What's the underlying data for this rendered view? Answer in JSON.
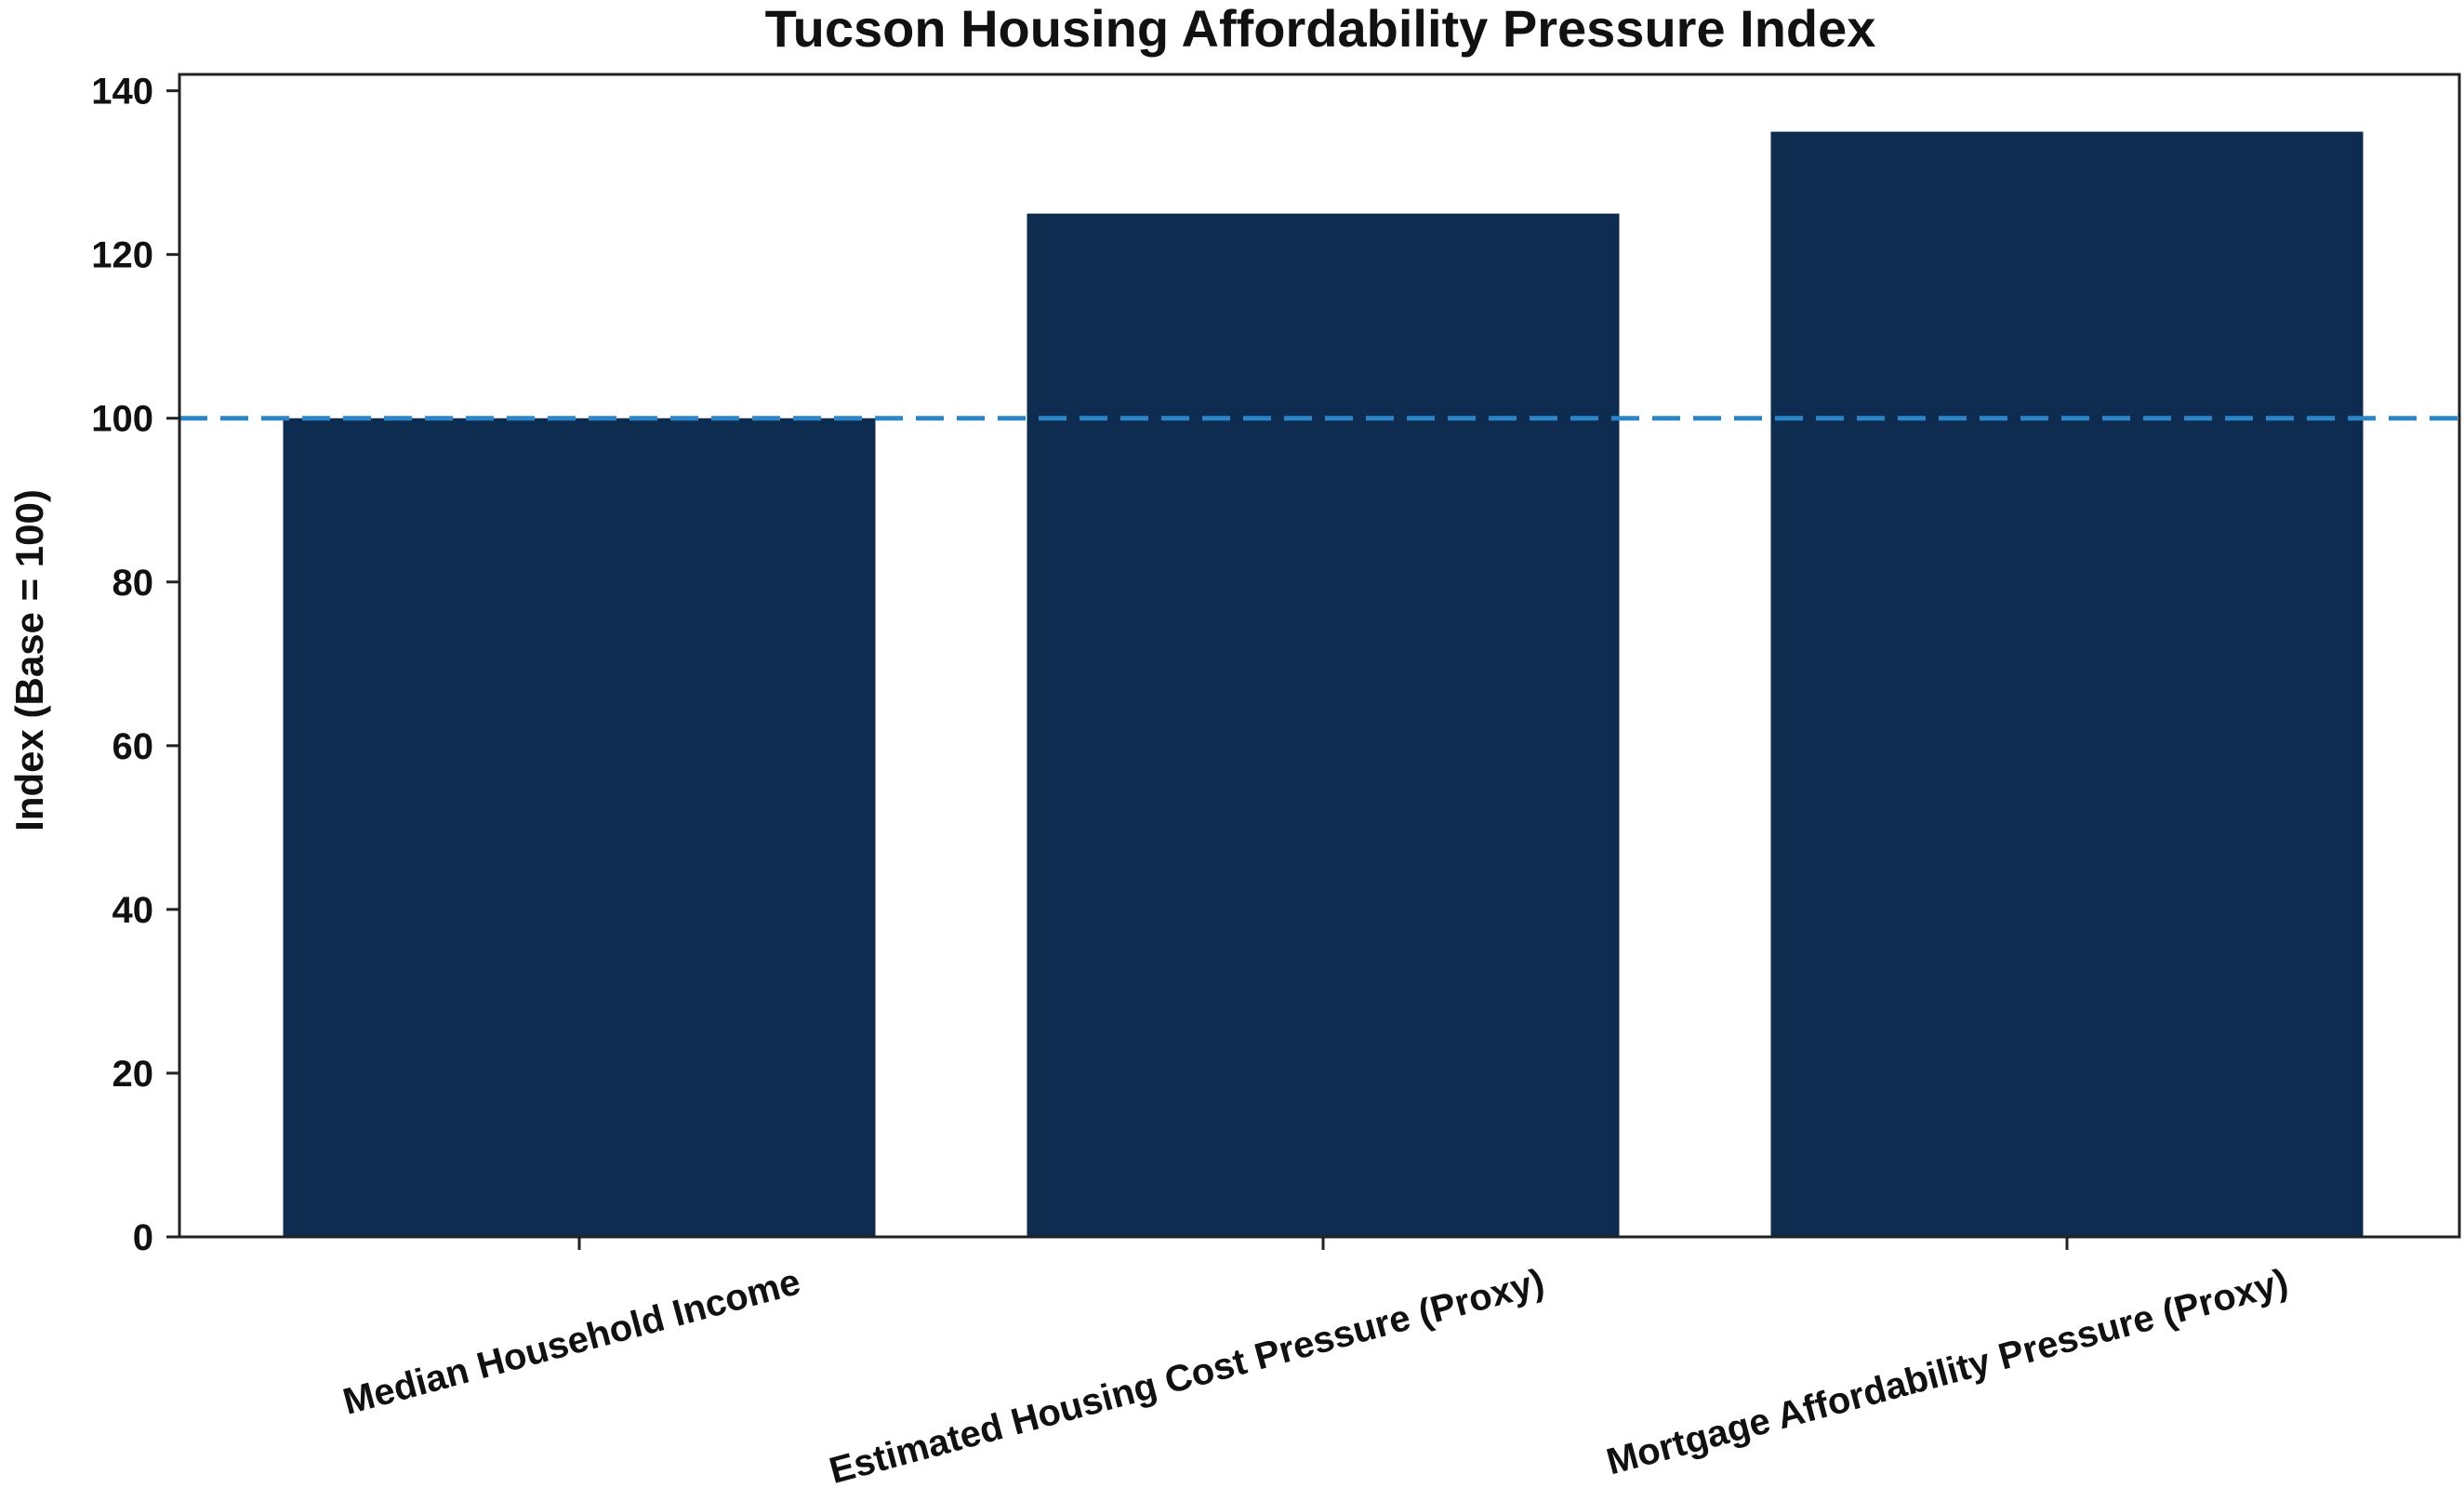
{
  "chart_data": {
    "type": "bar",
    "title": "Tucson Housing Affordability Pressure Index",
    "xlabel": "",
    "ylabel": "Index (Base = 100)",
    "categories": [
      "Median Household Income",
      "Estimated Housing Cost Pressure (Proxy)",
      "Mortgage Affordability Pressure (Proxy)"
    ],
    "values": [
      100,
      125,
      135
    ],
    "ylim": [
      0,
      142
    ],
    "yticks": [
      0,
      20,
      40,
      60,
      80,
      100,
      120,
      140
    ],
    "reference_line": {
      "value": 100,
      "style": "dashed",
      "color": "#2b86c9"
    },
    "bar_color": "#0e2b50",
    "grid": false,
    "legend": "none"
  }
}
